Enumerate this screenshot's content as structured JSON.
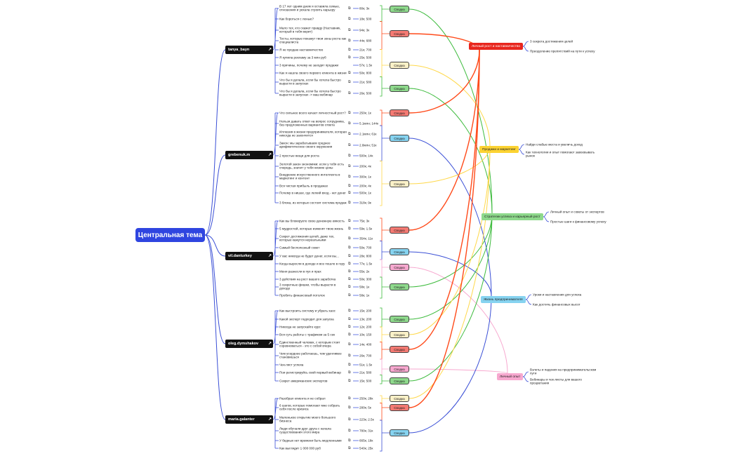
{
  "central": "Центральная тема",
  "summary_label": "Сводка",
  "colors": {
    "red": "#f47a73",
    "yellow": "#fbf1c8",
    "green": "#8ed98c",
    "blue": "#86d3f0",
    "pink": "#f7a8cf",
    "line_red": "#ff4a1a",
    "line_yellow": "#ffd84a",
    "line_green": "#3dbb3d",
    "line_blue": "#3a4fd6",
    "line_pink": "#f7a8cf",
    "central": "#2f45e0"
  },
  "groups": [
    {
      "user": "tanya_bayn",
      "items": [
        {
          "t": "В 17 лет одним днем я оставила семью, отношения и уехала строить карьеру",
          "m": "80к; 3к"
        },
        {
          "t": "Как бороться с ленью?",
          "m": "18к; 500"
        },
        {
          "t": "Мало тех, кто скажет правду (Наставник, который в тебя верит)",
          "m": "94к; 3к"
        },
        {
          "t": "Тесты, которые покажут твои зоны роста как специалиста",
          "m": "44к; 680"
        },
        {
          "t": "Я не продаю наставничество",
          "m": "21к; 700"
        },
        {
          "t": "Я купила рекламу за 3 млн руб",
          "m": "25к; 500"
        },
        {
          "t": "3 причины, почему не заходят продажи",
          "m": "57к; 1.5к",
          "nolink": true
        },
        {
          "t": "Как я нашла своего первого клиента в жизни",
          "m": "50к; 800"
        },
        {
          "t": "Что бы я делала, если бы хотела быстро вырасти в запусках",
          "m": "21к; 580"
        },
        {
          "t": "Что бы я делала, если бы хотела быстро вырасти в запусках -> ваш вебинар",
          "m": "26к; 500"
        }
      ],
      "summaries": [
        "green",
        "red",
        "yellow",
        "green"
      ]
    },
    {
      "user": "grebenuk.m",
      "items": [
        {
          "t": "Что сильнее всего качает личностный рост?",
          "m": "250к; 1к"
        },
        {
          "t": "Нельзя давать ответ на вопрос сотрудника, без предложенных вариантов ответа",
          "m": "5.1млн; 144к"
        },
        {
          "t": "Иллюзия в жизни предпринимателя, которая никогда не закончится",
          "m": "2.1млн; 61к"
        },
        {
          "t": "Закон: мы зарабатываем среднее арифметическое своего окружения",
          "m": "2.8млн; 51к"
        },
        {
          "t": "2 простые вещи для роста",
          "m": "500к; 14к"
        },
        {
          "t": "Золотой закон экономики: если у тебя есть очередь, значит у тебя низкие цены",
          "m": "200к; 4к"
        },
        {
          "t": "Внедрение искусственного интеллекта в маркетинг и контент",
          "m": "300к; 1к"
        },
        {
          "t": "Вся чистая прибыль в продажах",
          "m": "200к; 4к"
        },
        {
          "t": "Почему в нишах, где легкий вход - нет денег",
          "m": "500к; 1к"
        },
        {
          "t": "3 блока, из которых состоит система продаж",
          "m": "318к; 9к"
        }
      ],
      "summaries": [
        "red",
        "blue",
        "yellow"
      ]
    },
    {
      "user": "vil.danturkey",
      "items": [
        {
          "t": "Как вы блокируете свою денежную емкость",
          "m": "75к; 3к"
        },
        {
          "t": "5 мудростей, которые изменят твою жизнь",
          "m": "59к; 1.5к"
        },
        {
          "t": "Секрет достижения целей, даже тех, которые кажутся нереальными",
          "m": "354к; 11к"
        },
        {
          "t": "Самый бесполезный совет",
          "m": "50к; 700"
        },
        {
          "t": "У вас никогда не будет денег, если вы...",
          "m": "28к; 800"
        },
        {
          "t": "Когда выросли в доходе и все пошло в гору",
          "m": "77к; 1.5к"
        },
        {
          "t": "Меня разнесли в пух и прах",
          "m": "55к; 2к"
        },
        {
          "t": "3 действия на рост вашего заработка",
          "m": "50к; 300"
        },
        {
          "t": "3 секретные фишки, чтобы вырасти в доходе",
          "m": "58к; 1к"
        },
        {
          "t": "Пробить финансовый потолок",
          "m": "58к; 1к"
        }
      ],
      "summaries": [
        "red",
        "blue",
        "pink",
        "green"
      ]
    },
    {
      "user": "oleg.dymshakov",
      "items": [
        {
          "t": "Как выстроить систему и убрать хаос",
          "m": "15к; 200"
        },
        {
          "t": "Какой эксперт подходит для запуска",
          "m": "13к; 200"
        },
        {
          "t": "Никогда не запускайте курс",
          "m": "12к; 200"
        },
        {
          "t": "Вся суть работы с трафиком за 5 сек",
          "m": "10к; 150"
        },
        {
          "t": "Единственный человек, с которым стоит соревноваться - это с собой вчера",
          "m": "14к; 400"
        },
        {
          "t": "Чем усерднее работаешь, тем удачливее становишься",
          "m": "26к; 700"
        },
        {
          "t": "Чек-лист успеха",
          "m": "51к; 1.5к"
        },
        {
          "t": "Пои регистрируйсь свой первый вебинар",
          "m": "21к; 580"
        },
        {
          "t": "Секрет американских экспертов",
          "m": "15к; 500"
        }
      ],
      "summaries": [
        "green",
        "yellow",
        "red",
        "pink",
        "green"
      ]
    },
    {
      "user": "maria.galanter",
      "items": [
        {
          "t": "Разобрал клиента и не собрал",
          "m": "250к; 28к"
        },
        {
          "t": "6 шагов, которые помогают мне собрать себя после кризиса",
          "m": "280к; 5к"
        },
        {
          "t": "Маленькое открытие моего большого бизнеса",
          "m": "223к; 2.5к"
        },
        {
          "t": "Люди обучали друг друга с начала существования этого мира",
          "m": "780к; 31к"
        },
        {
          "t": "У бедных нет времени быть медленными",
          "m": "665к; 18к"
        },
        {
          "t": "Как выглядит 1 000 000 руб",
          "m": "540к; 25к"
        }
      ],
      "summaries": [
        "yellow",
        "red",
        "blue"
      ]
    }
  ],
  "topics": [
    {
      "key": "red",
      "label": "Личный рост и наставничество",
      "bg": "#e8261e",
      "fg": "#fff",
      "children": [
        "3 секрета достижения целей",
        "Преодоление препятствий на пути к успеху"
      ]
    },
    {
      "key": "yellow",
      "label": "Продажи и маркетинг",
      "bg": "#fcd332",
      "fg": "#222",
      "children": [
        "Найди слабые места и увеличь доход",
        "Как технологии и опыт помогают завоевывать рынок"
      ]
    },
    {
      "key": "green",
      "label": "Стратегии успеха и карьерный рост",
      "bg": "#8ed98c",
      "fg": "#222",
      "children": [
        "Личный опыт и советы от экспертов",
        "Простые шаги к финансовому успеху"
      ]
    },
    {
      "key": "blue",
      "label": "Жизнь предпринимателя",
      "bg": "#86d3f0",
      "fg": "#222",
      "children": [
        "Уроки и наставления для успеха",
        "Как достичь финансовых высот"
      ]
    },
    {
      "key": "pink",
      "label": "Личный опыт",
      "bg": "#f7a8cf",
      "fg": "#222",
      "children": [
        "Взлеты и падения на предпринимательском пути",
        "Вебинары и чек-листы для вашего процветания"
      ]
    }
  ]
}
